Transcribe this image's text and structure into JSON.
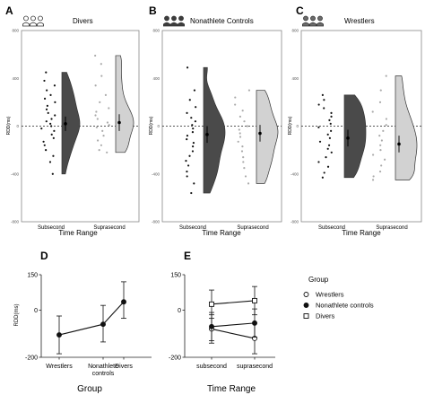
{
  "panel_labels": {
    "a": "A",
    "b": "B",
    "c": "C",
    "d": "D",
    "e": "E"
  },
  "colors": {
    "divers": "#ffffff",
    "controls": "#3d3d3d",
    "wrestlers": "#6b6b6b",
    "sub": "#4a4a4a",
    "supra": "#d2d2d2"
  },
  "chart_data": [
    {
      "type": "raincloud",
      "panel": "A",
      "title": "Divers",
      "ylabel": "RDD(ms)",
      "xlabel": "Time Range",
      "categories": [
        "Subsecond",
        "Suprasecond"
      ],
      "yticks": [
        "800",
        "400",
        "0",
        "-400",
        "-800"
      ],
      "ylim": [
        -800,
        800
      ],
      "zero_line": "dashed",
      "summary": [
        {
          "category": "Subsecond",
          "mean": 20,
          "ci": [
            -40,
            80
          ]
        },
        {
          "category": "Suprasecond",
          "mean": 30,
          "ci": [
            -40,
            100
          ]
        }
      ],
      "points": {
        "Subsecond": [
          450,
          380,
          340,
          300,
          260,
          230,
          200,
          170,
          140,
          110,
          90,
          60,
          40,
          20,
          0,
          -20,
          -40,
          -70,
          -100,
          -130,
          -160,
          -200,
          -250,
          -300,
          -400
        ],
        "Suprasecond": [
          590,
          520,
          420,
          340,
          260,
          200,
          150,
          120,
          90,
          60,
          30,
          10,
          -10,
          -40,
          -80,
          -120,
          -160,
          -200,
          -220
        ]
      }
    },
    {
      "type": "raincloud",
      "panel": "B",
      "title": "Nonathlete Controls",
      "ylabel": "RDD(ms)",
      "xlabel": "Time Range",
      "categories": [
        "Subsecond",
        "Suprasecond"
      ],
      "yticks": [
        "800",
        "400",
        "0",
        "-400",
        "-800"
      ],
      "ylim": [
        -800,
        800
      ],
      "zero_line": "dashed",
      "summary": [
        {
          "category": "Subsecond",
          "mean": -70,
          "ci": [
            -140,
            0
          ]
        },
        {
          "category": "Suprasecond",
          "mean": -60,
          "ci": [
            -130,
            10
          ]
        }
      ],
      "points": {
        "Subsecond": [
          490,
          300,
          220,
          160,
          110,
          70,
          40,
          10,
          -20,
          -50,
          -80,
          -110,
          -140,
          -170,
          -210,
          -250,
          -290,
          -330,
          -380,
          -420,
          -480,
          -560
        ],
        "Suprasecond": [
          300,
          240,
          180,
          130,
          80,
          40,
          0,
          -30,
          -60,
          -90,
          -130,
          -170,
          -210,
          -260,
          -300,
          -350,
          -420,
          -480
        ]
      }
    },
    {
      "type": "raincloud",
      "panel": "C",
      "title": "Wrestlers",
      "ylabel": "RDD(ms)",
      "xlabel": "Time Range",
      "categories": [
        "Subsecond",
        "Suprasecond"
      ],
      "yticks": [
        "800",
        "400",
        "0",
        "-400",
        "-800"
      ],
      "ylim": [
        -800,
        800
      ],
      "zero_line": "dashed",
      "summary": [
        {
          "category": "Subsecond",
          "mean": -100,
          "ci": [
            -170,
            -30
          ]
        },
        {
          "category": "Suprasecond",
          "mean": -150,
          "ci": [
            -220,
            -80
          ]
        }
      ],
      "points": {
        "Subsecond": [
          260,
          220,
          180,
          150,
          110,
          80,
          50,
          20,
          -10,
          -40,
          -70,
          -100,
          -130,
          -160,
          -190,
          -220,
          -260,
          -300,
          -340,
          -390,
          -430
        ],
        "Suprasecond": [
          420,
          300,
          200,
          120,
          60,
          10,
          -40,
          -80,
          -120,
          -160,
          -200,
          -240,
          -280,
          -330,
          -380,
          -420,
          -450
        ]
      }
    },
    {
      "type": "line",
      "panel": "D",
      "ylabel": "RDD(ms)",
      "xlabel": "Group",
      "categories": [
        "Wrestlers",
        "Nonathlete controls",
        "Divers"
      ],
      "category_labels": [
        [
          "Wrestlers"
        ],
        [
          "Nonathlete",
          "controls"
        ],
        [
          "Divers"
        ]
      ],
      "yticks": [
        "150",
        "0",
        "-200"
      ],
      "ylim": [
        -200,
        150
      ],
      "series": [
        {
          "values": [
            -105,
            -60,
            35
          ],
          "error_low": [
            -185,
            -135,
            -35
          ],
          "error_high": [
            -25,
            20,
            120
          ]
        }
      ]
    },
    {
      "type": "line",
      "panel": "E",
      "xlabel": "Time Range",
      "categories": [
        "subsecond",
        "suprasecond"
      ],
      "yticks": [
        "150",
        "0",
        "-200"
      ],
      "ylim": [
        -200,
        150
      ],
      "legend_title": "Group",
      "legend_position": "right",
      "series": [
        {
          "name": "Wrestlers",
          "marker": "open-circle",
          "values": [
            -80,
            -120
          ],
          "error_low": [
            -140,
            -185
          ],
          "error_high": [
            -20,
            -55
          ]
        },
        {
          "name": "Nonathlete controls",
          "marker": "filled-circle",
          "values": [
            -70,
            -55
          ],
          "error_low": [
            -130,
            -115
          ],
          "error_high": [
            -10,
            5
          ]
        },
        {
          "name": "Divers",
          "marker": "open-square",
          "values": [
            25,
            40
          ],
          "error_low": [
            -35,
            -20
          ],
          "error_high": [
            85,
            100
          ]
        }
      ]
    }
  ]
}
